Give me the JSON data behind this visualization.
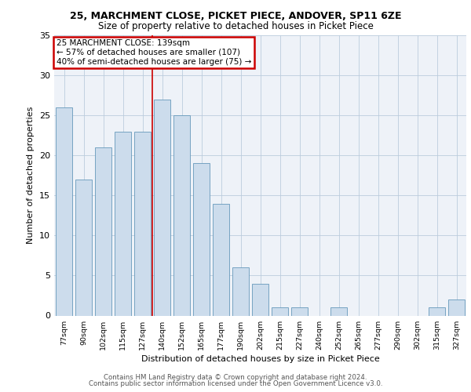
{
  "title1": "25, MARCHMENT CLOSE, PICKET PIECE, ANDOVER, SP11 6ZE",
  "title2": "Size of property relative to detached houses in Picket Piece",
  "xlabel": "Distribution of detached houses by size in Picket Piece",
  "ylabel": "Number of detached properties",
  "categories": [
    "77sqm",
    "90sqm",
    "102sqm",
    "115sqm",
    "127sqm",
    "140sqm",
    "152sqm",
    "165sqm",
    "177sqm",
    "190sqm",
    "202sqm",
    "215sqm",
    "227sqm",
    "240sqm",
    "252sqm",
    "265sqm",
    "277sqm",
    "290sqm",
    "302sqm",
    "315sqm",
    "327sqm"
  ],
  "values": [
    26,
    17,
    21,
    23,
    23,
    27,
    25,
    19,
    14,
    6,
    4,
    1,
    1,
    0,
    1,
    0,
    0,
    0,
    0,
    1,
    2
  ],
  "bar_color": "#ccdcec",
  "bar_edge_color": "#6699bb",
  "highlight_index": 5,
  "annotation_title": "25 MARCHMENT CLOSE: 139sqm",
  "annotation_line2": "← 57% of detached houses are smaller (107)",
  "annotation_line3": "40% of semi-detached houses are larger (75) →",
  "annotation_box_facecolor": "#ffffff",
  "annotation_border_color": "#cc0000",
  "ylim": [
    0,
    35
  ],
  "yticks": [
    0,
    5,
    10,
    15,
    20,
    25,
    30,
    35
  ],
  "footer1": "Contains HM Land Registry data © Crown copyright and database right 2024.",
  "footer2": "Contains public sector information licensed under the Open Government Licence v3.0.",
  "bg_color": "#ffffff",
  "plot_bg_color": "#eef2f8",
  "grid_color": "#bbccdd"
}
